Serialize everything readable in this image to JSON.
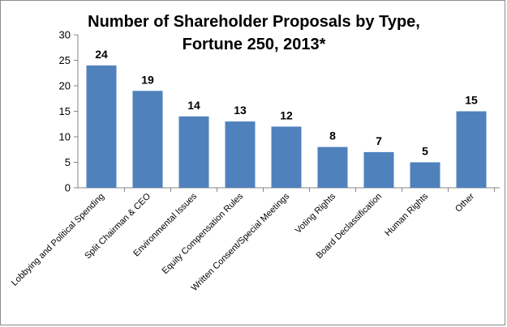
{
  "chart_data": {
    "type": "bar",
    "title_lines": [
      "Number of Shareholder Proposals by Type,",
      "Fortune 250, 2013*"
    ],
    "categories": [
      "Lobbying and Political Spending",
      "Split Chairman & CEO",
      "Environmental Issues",
      "Equity Compensation Rules",
      "Written Consent/Special Meetings",
      "Voting Rights",
      "Board Declassification",
      "Human Rights",
      "Other"
    ],
    "values": [
      24,
      19,
      14,
      13,
      12,
      8,
      7,
      5,
      15
    ],
    "ylim": [
      0,
      30
    ],
    "yticks": [
      0,
      5,
      10,
      15,
      20,
      25,
      30
    ],
    "grid": false,
    "legend": "none",
    "bar_color": "#4f81bd"
  }
}
